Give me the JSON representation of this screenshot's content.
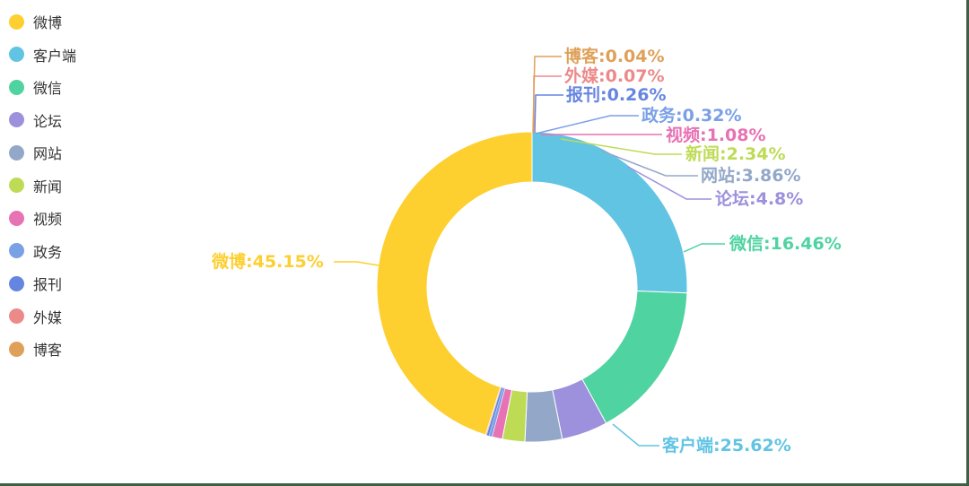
{
  "chart_data": {
    "type": "pie",
    "variant": "donut",
    "title": "",
    "legend_position": "left",
    "categories": [
      "微博",
      "客户端",
      "微信",
      "论坛",
      "网站",
      "新闻",
      "视频",
      "政务",
      "报刊",
      "外媒",
      "博客"
    ],
    "values": [
      45.15,
      25.62,
      16.46,
      4.8,
      3.86,
      2.34,
      1.08,
      0.32,
      0.26,
      0.07,
      0.04
    ],
    "unit": "%",
    "colors": [
      "#fdcf2f",
      "#61c4e3",
      "#4fd3a1",
      "#9d90dc",
      "#93a8c9",
      "#bedb56",
      "#e772b4",
      "#7aa0e6",
      "#6685e0",
      "#ec8a8a",
      "#dfa15a"
    ],
    "labels": [
      "微博:45.15%",
      "客户端:25.62%",
      "微信:16.46%",
      "论坛:4.8%",
      "网站:3.86%",
      "新闻:2.34%",
      "视频:1.08%",
      "政务:0.32%",
      "报刊:0.26%",
      "外媒:0.07%",
      "博客:0.04%"
    ]
  },
  "legend": {
    "items": [
      {
        "label": "微博",
        "color": "#fdcf2f"
      },
      {
        "label": "客户端",
        "color": "#61c4e3"
      },
      {
        "label": "微信",
        "color": "#4fd3a1"
      },
      {
        "label": "论坛",
        "color": "#9d90dc"
      },
      {
        "label": "网站",
        "color": "#93a8c9"
      },
      {
        "label": "新闻",
        "color": "#bedb56"
      },
      {
        "label": "视频",
        "color": "#e772b4"
      },
      {
        "label": "政务",
        "color": "#7aa0e6"
      },
      {
        "label": "报刊",
        "color": "#6685e0"
      },
      {
        "label": "外媒",
        "color": "#ec8a8a"
      },
      {
        "label": "博客",
        "color": "#dfa15a"
      }
    ]
  }
}
